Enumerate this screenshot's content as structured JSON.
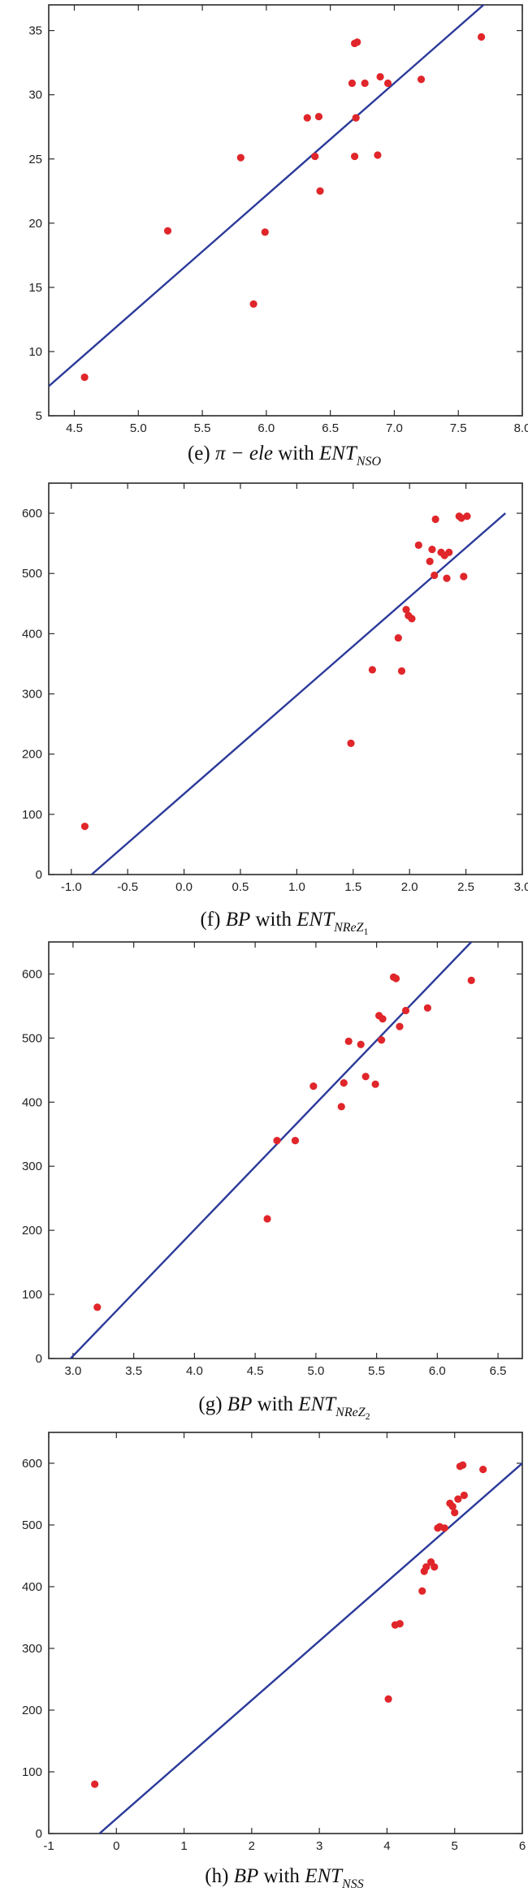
{
  "chart_data": [
    {
      "type": "scatter",
      "caption": {
        "label": "(e)",
        "var1": "π − ele",
        "joiner": "with",
        "var2": "ENT",
        "var2_sub": "NSO",
        "var2_subsub": ""
      },
      "xlim": [
        4.3,
        8.0
      ],
      "ylim": [
        5,
        37
      ],
      "xticks": [
        4.5,
        5.0,
        5.5,
        6.0,
        6.5,
        7.0,
        7.5,
        8.0
      ],
      "xtick_labels": [
        "4.5",
        "5.0",
        "5.5",
        "6.0",
        "6.5",
        "7.0",
        "7.5",
        "8.0"
      ],
      "yticks": [
        5,
        10,
        15,
        20,
        25,
        30,
        35
      ],
      "ytick_labels": [
        "5",
        "10",
        "15",
        "20",
        "25",
        "30",
        "35"
      ],
      "fit_line": {
        "x": [
          4.3,
          7.72
        ],
        "y": [
          7.3,
          37.2
        ]
      },
      "points": {
        "x": [
          4.58,
          5.23,
          5.8,
          5.9,
          5.99,
          6.32,
          6.38,
          6.42,
          6.41,
          6.67,
          6.69,
          6.71,
          6.69,
          6.7,
          6.77,
          6.87,
          6.89,
          6.95,
          7.21,
          7.68
        ],
        "y": [
          8.0,
          19.4,
          25.1,
          13.7,
          19.3,
          28.2,
          25.2,
          22.5,
          28.3,
          30.9,
          34.0,
          34.1,
          25.2,
          28.2,
          30.9,
          25.3,
          31.4,
          30.9,
          31.2,
          34.5
        ]
      }
    },
    {
      "type": "scatter",
      "caption": {
        "label": "(f)",
        "var1": "BP",
        "joiner": "with",
        "var2": "ENT",
        "var2_sub": "NReZ",
        "var2_subsub": "1"
      },
      "xlim": [
        -1.2,
        3.0
      ],
      "ylim": [
        0,
        650
      ],
      "xticks": [
        -1.0,
        -0.5,
        0.0,
        0.5,
        1.0,
        1.5,
        2.0,
        2.5,
        3.0
      ],
      "xtick_labels": [
        "-1.0",
        "-0.5",
        "0.0",
        "0.5",
        "1.0",
        "1.5",
        "2.0",
        "2.5",
        "3.0"
      ],
      "yticks": [
        0,
        100,
        200,
        300,
        400,
        500,
        600
      ],
      "ytick_labels": [
        "0",
        "100",
        "200",
        "300",
        "400",
        "500",
        "600"
      ],
      "fit_line": {
        "x": [
          -0.82,
          2.85
        ],
        "y": [
          0,
          600
        ]
      },
      "points": {
        "x": [
          -0.88,
          1.48,
          1.67,
          1.9,
          1.93,
          1.97,
          1.99,
          2.02,
          2.08,
          2.18,
          2.2,
          2.22,
          2.23,
          2.28,
          2.31,
          2.33,
          2.35,
          2.44,
          2.46,
          2.48,
          2.51
        ],
        "y": [
          80,
          218,
          340,
          393,
          338,
          440,
          430,
          425,
          547,
          520,
          540,
          497,
          590,
          535,
          530,
          492,
          535,
          595,
          592,
          495,
          595
        ]
      }
    },
    {
      "type": "scatter",
      "caption": {
        "label": "(g)",
        "var1": "BP",
        "joiner": "with",
        "var2": "ENT",
        "var2_sub": "NReZ",
        "var2_subsub": "2"
      },
      "xlim": [
        2.8,
        6.7
      ],
      "ylim": [
        0,
        650
      ],
      "xticks": [
        3.0,
        3.5,
        4.0,
        4.5,
        5.0,
        5.5,
        6.0,
        6.5
      ],
      "xtick_labels": [
        "3.0",
        "3.5",
        "4.0",
        "4.5",
        "5.0",
        "5.5",
        "6.0",
        "6.5"
      ],
      "yticks": [
        0,
        100,
        200,
        300,
        400,
        500,
        600
      ],
      "ytick_labels": [
        "0",
        "100",
        "200",
        "300",
        "400",
        "500",
        "600"
      ],
      "fit_line": {
        "x": [
          2.98,
          6.28
        ],
        "y": [
          0,
          650
        ]
      },
      "points": {
        "x": [
          3.2,
          4.6,
          4.68,
          4.83,
          4.98,
          5.21,
          5.23,
          5.27,
          5.37,
          5.41,
          5.49,
          5.52,
          5.54,
          5.55,
          5.64,
          5.66,
          5.69,
          5.74,
          5.92,
          6.28
        ],
        "y": [
          80,
          218,
          340,
          340,
          425,
          393,
          430,
          495,
          490,
          440,
          428,
          535,
          497,
          530,
          595,
          593,
          518,
          543,
          547,
          590
        ]
      }
    },
    {
      "type": "scatter",
      "caption": {
        "label": "(h)",
        "var1": "BP",
        "joiner": "with",
        "var2": "ENT",
        "var2_sub": "NSS",
        "var2_subsub": ""
      },
      "xlim": [
        -1.0,
        6.0
      ],
      "ylim": [
        0,
        650
      ],
      "xticks": [
        -1,
        0,
        1,
        2,
        3,
        4,
        5,
        6
      ],
      "xtick_labels": [
        "-1",
        "0",
        "1",
        "2",
        "3",
        "4",
        "5",
        "6"
      ],
      "yticks": [
        0,
        100,
        200,
        300,
        400,
        500,
        600
      ],
      "ytick_labels": [
        "0",
        "100",
        "200",
        "300",
        "400",
        "500",
        "600"
      ],
      "fit_line": {
        "x": [
          -0.25,
          6.0
        ],
        "y": [
          0,
          600
        ]
      },
      "points": {
        "x": [
          -0.32,
          4.02,
          4.12,
          4.19,
          4.52,
          4.55,
          4.58,
          4.65,
          4.7,
          4.75,
          4.78,
          4.85,
          4.93,
          4.97,
          5.0,
          5.05,
          5.08,
          5.12,
          5.14,
          5.42
        ],
        "y": [
          80,
          218,
          338,
          340,
          393,
          425,
          432,
          440,
          432,
          495,
          497,
          495,
          535,
          530,
          520,
          542,
          595,
          597,
          548,
          590
        ]
      }
    }
  ]
}
